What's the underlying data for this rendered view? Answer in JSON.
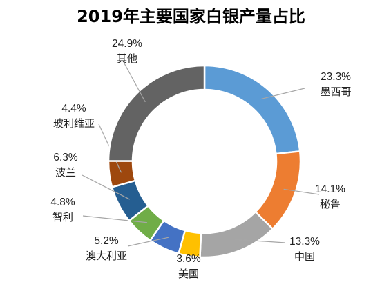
{
  "chart_data": {
    "type": "pie",
    "title": "2019年主要国家白银产量占比",
    "slices": [
      {
        "label": "墨西哥",
        "value": 23.3,
        "value_label": "23.3%",
        "color": "#5B9BD5"
      },
      {
        "label": "秘鲁",
        "value": 14.1,
        "value_label": "14.1%",
        "color": "#ED7D31"
      },
      {
        "label": "中国",
        "value": 13.3,
        "value_label": "13.3%",
        "color": "#A5A5A5"
      },
      {
        "label": "美国",
        "value": 3.6,
        "value_label": "3.6%",
        "color": "#FFC000"
      },
      {
        "label": "澳大利亚",
        "value": 5.2,
        "value_label": "5.2%",
        "color": "#4472C4"
      },
      {
        "label": "智利",
        "value": 4.8,
        "value_label": "4.8%",
        "color": "#70AD47"
      },
      {
        "label": "波兰",
        "value": 6.3,
        "value_label": "6.3%",
        "color": "#255E91"
      },
      {
        "label": "玻利维亚",
        "value": 4.4,
        "value_label": "4.4%",
        "color": "#9E480E"
      },
      {
        "label": "其他",
        "value": 24.9,
        "value_label": "24.9%",
        "color": "#636363"
      }
    ],
    "style": "doughnut",
    "start_angle": "top, clockwise",
    "labels": "outside with leader lines"
  }
}
